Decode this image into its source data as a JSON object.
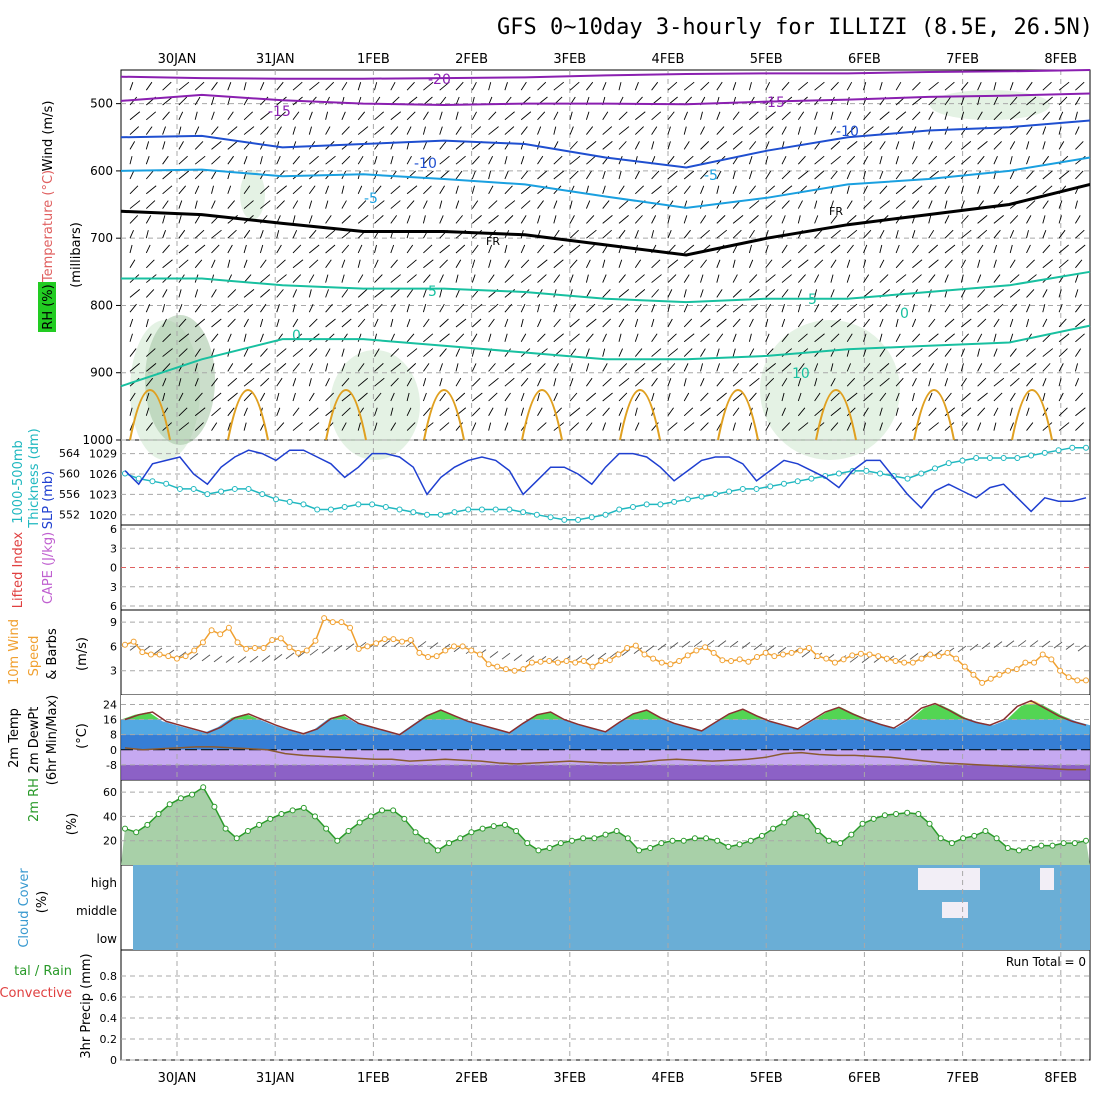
{
  "header": {
    "title": "GFS 0~10day 3-hourly for ILLIZI (8.5E, 26.5N)"
  },
  "dates": [
    "30JAN",
    "31JAN",
    "1FEB",
    "2FEB",
    "3FEB",
    "4FEB",
    "5FEB",
    "6FEB",
    "7FEB",
    "8FEB"
  ],
  "colors": {
    "temp_purple": "#8a1fb0",
    "temp_blue": "#1f4fd0",
    "temp_lightblue": "#1aa0e0",
    "temp_teal": "#18c0a0",
    "temp_orange": "#e0a020",
    "freezing": "#000000",
    "slp": "#1f3fd0",
    "thickness": "#20b8c0",
    "wind10m": "#f0a030",
    "cloud": "#6aaed6",
    "rh_green": "#2a9a2a"
  },
  "labels": {
    "upper_wind": "Wind (m/s)",
    "upper_temp": "Temperature (°C)",
    "upper_rh": "RH (%)",
    "upper_mb": "(millibars)",
    "slp": "SLP (mb)",
    "thickness_a": "1000-500mb",
    "thickness_b": "Thickness (dm)",
    "lifted": "Lifted Index",
    "cape": "CAPE (J/kg)",
    "wind10_a": "10m Wind",
    "wind10_b": "Speed",
    "wind10_c": "& Barbs",
    "wind10_unit": "(m/s)",
    "temp_a": "2m Temp",
    "temp_b": "2m DewPt",
    "temp_c": "(6hr Min/Max)",
    "temp_unit": "(°C)",
    "rh_a": "2m RH",
    "rh_unit": "(%)",
    "cloud_a": "Cloud Cover",
    "cloud_unit": "(%)",
    "precip_a": "tal / Rain",
    "precip_b": "Convective",
    "precip_c": "3hr Precip (mm)",
    "run_total": "Run Total = 0"
  },
  "contour_labels": {
    "m20": "-20",
    "m15a": "-15",
    "m15b": "-15",
    "m10a": "-10",
    "m10b": "-10",
    "m5a": "-5",
    "m5b": "-5",
    "fr1": "FR",
    "fr2": "FR",
    "p5a": "5",
    "p5b": "5",
    "p10": "10",
    "p0a": "0",
    "p0b": "0"
  },
  "chart_data": [
    {
      "type": "line",
      "panel": "upper_air",
      "y_ticks": [
        500,
        600,
        700,
        800,
        900,
        1000
      ],
      "ylim": [
        450,
        1000
      ],
      "contours": [
        {
          "name": "-20",
          "p": [
            460,
            462,
            463,
            463,
            462,
            461,
            458,
            456,
            455,
            455,
            453,
            452,
            450
          ]
        },
        {
          "name": "-15",
          "p": [
            496,
            487,
            495,
            500,
            502,
            500,
            500,
            501,
            497,
            494,
            490,
            488,
            485
          ]
        },
        {
          "name": "-10",
          "p": [
            550,
            548,
            565,
            560,
            555,
            560,
            580,
            595,
            570,
            550,
            540,
            535,
            525
          ]
        },
        {
          "name": "-5",
          "p": [
            600,
            598,
            608,
            605,
            612,
            620,
            638,
            655,
            640,
            620,
            612,
            600,
            580
          ]
        },
        {
          "name": "FR",
          "p": [
            660,
            665,
            678,
            690,
            690,
            695,
            710,
            725,
            700,
            680,
            665,
            650,
            620
          ]
        },
        {
          "name": "5",
          "p": [
            760,
            760,
            770,
            775,
            775,
            780,
            790,
            795,
            790,
            790,
            780,
            770,
            750
          ]
        },
        {
          "name": "10",
          "p": [
            920,
            880,
            850,
            850,
            860,
            870,
            880,
            880,
            875,
            865,
            860,
            855,
            830
          ]
        }
      ]
    },
    {
      "type": "line",
      "panel": "slp_thickness",
      "y_ticks_slp": [
        1020,
        1023,
        1026,
        1029
      ],
      "y_ticks_thickness": [
        552,
        556,
        560,
        564
      ],
      "series": [
        {
          "name": "SLP (mb)",
          "values": [
            1026.5,
            1024.5,
            1027.5,
            1028,
            1028.5,
            1026,
            1024.5,
            1027,
            1028.5,
            1029.5,
            1029,
            1028,
            1029.5,
            1029.5,
            1028.5,
            1027.5,
            1025.5,
            1027,
            1029,
            1029,
            1028.5,
            1027,
            1023,
            1025.5,
            1027,
            1028,
            1028.5,
            1028,
            1026.5,
            1023,
            1025,
            1027,
            1027,
            1026,
            1024.5,
            1027,
            1029,
            1029,
            1028.5,
            1027,
            1025,
            1026.5,
            1028,
            1028.5,
            1028.5,
            1027.5,
            1025,
            1026.5,
            1028,
            1027.5,
            1026.5,
            1025.5,
            1024,
            1026.5,
            1028,
            1028,
            1025.5,
            1023,
            1021,
            1023.5,
            1024.5,
            1023.5,
            1022.5,
            1024,
            1024.5,
            1022.5,
            1020.5,
            1022.5,
            1022,
            1022,
            1022.5
          ]
        },
        {
          "name": "Thickness (dm)",
          "values": [
            560,
            559,
            558.5,
            558,
            557,
            557,
            556,
            556.5,
            557,
            557,
            556,
            555,
            554.5,
            554,
            553,
            553,
            553.5,
            554,
            554,
            553.5,
            553,
            552.5,
            552,
            552,
            552.5,
            553,
            553,
            553,
            553,
            552.5,
            552,
            551.5,
            551,
            551,
            551.5,
            552,
            553,
            553.5,
            554,
            554,
            554.5,
            555,
            555.5,
            556,
            556.5,
            557,
            557,
            557.5,
            558,
            558.5,
            559,
            559.5,
            560,
            560.5,
            560.5,
            560,
            559.5,
            559,
            560,
            561,
            562,
            562.5,
            563,
            563,
            563,
            563,
            563.5,
            564,
            564.5,
            565,
            565
          ]
        }
      ]
    },
    {
      "type": "line",
      "panel": "lifted_index_cape",
      "y_ticks": [
        6,
        3,
        0,
        3,
        6
      ],
      "series": []
    },
    {
      "type": "line",
      "panel": "wind10m",
      "y_ticks": [
        3,
        6,
        9
      ],
      "series": [
        {
          "name": "10m Wind Speed",
          "values": [
            6.2,
            6.6,
            5.3,
            5.0,
            5.0,
            4.8,
            4.5,
            4.8,
            5.5,
            6.5,
            8.0,
            7.5,
            8.3,
            6.5,
            5.7,
            5.8,
            5.8,
            6.8,
            7.0,
            5.9,
            5.2,
            5.5,
            6.7,
            9.5,
            9.0,
            9.0,
            8.3,
            5.7,
            6.0,
            6.4,
            6.9,
            6.9,
            6.6,
            6.8,
            5.2,
            4.7,
            4.8,
            5.5,
            6.0,
            6.0,
            5.5,
            5.0,
            3.8,
            3.5,
            3.2,
            3.0,
            3.2,
            4.0,
            4.1,
            4.2,
            4.0,
            4.2,
            4.0,
            4.2,
            3.5,
            4.2,
            4.3,
            5.0,
            5.8,
            6.1,
            5.0,
            4.5,
            4.0,
            3.8,
            4.2,
            4.9,
            5.5,
            5.9,
            5.2,
            4.3,
            4.2,
            4.4,
            4.1,
            4.7,
            5.2,
            4.8,
            5.0,
            5.2,
            5.5,
            5.8,
            4.8,
            4.5,
            4.0,
            4.4,
            4.9,
            5.1,
            5.0,
            4.8,
            4.5,
            4.2,
            4.0,
            4.0,
            4.5,
            5.0,
            4.8,
            5.2,
            4.5,
            3.5,
            2.5,
            1.5,
            2.0,
            2.5,
            3.0,
            3.2,
            4.0,
            4.0,
            5.0,
            4.4,
            3.0,
            2.2,
            1.8,
            1.8
          ]
        }
      ]
    },
    {
      "type": "area",
      "panel": "temp_dewpoint",
      "y_ticks": [
        24,
        16,
        8,
        0,
        -8
      ],
      "series": [
        {
          "name": "2m Temp",
          "values": [
            16,
            18.5,
            20,
            15,
            13,
            11,
            9,
            12,
            17,
            19,
            16,
            13,
            10.5,
            8.5,
            11,
            16.5,
            18.5,
            14,
            12,
            10,
            8,
            13,
            18,
            21,
            18,
            15,
            13,
            11,
            9,
            14,
            18.5,
            20,
            16,
            13.5,
            11.5,
            9.5,
            14.5,
            19,
            21,
            17,
            14,
            12,
            10,
            14.5,
            19,
            21.5,
            18,
            15,
            13,
            11,
            15.5,
            20,
            22.5,
            19,
            16,
            13.5,
            11.5,
            16,
            22,
            24.5,
            21,
            17,
            14.5,
            13,
            16,
            23,
            26,
            22,
            18,
            15,
            13
          ]
        },
        {
          "name": "2m DewPt",
          "values": [
            1,
            0,
            0.5,
            1,
            1.5,
            1.5,
            1,
            0.5,
            0,
            -2,
            -3,
            -3.5,
            -4,
            -4.5,
            -5,
            -5,
            -6,
            -5.5,
            -5,
            -5.5,
            -6,
            -7,
            -7.5,
            -7,
            -6.5,
            -6,
            -6.5,
            -7,
            -7,
            -6.5,
            -5.5,
            -5,
            -5.5,
            -6,
            -5.5,
            -5,
            -4,
            -2,
            -1.5,
            -2.5,
            -3,
            -3,
            -3.5,
            -4,
            -5,
            -6,
            -7,
            -7.5,
            -8,
            -8.5,
            -9,
            -9.5,
            -10,
            -10.5,
            -10.5
          ]
        }
      ]
    },
    {
      "type": "area",
      "panel": "rh2m",
      "y_ticks": [
        20,
        40,
        60
      ],
      "series": [
        {
          "name": "2m RH",
          "values": [
            30,
            27,
            33,
            42,
            50,
            55,
            58,
            64,
            48,
            30,
            22,
            28,
            33,
            38,
            42,
            45,
            47,
            40,
            30,
            20,
            28,
            35,
            40,
            45,
            45,
            38,
            27,
            20,
            12,
            18,
            22,
            27,
            30,
            32,
            33,
            28,
            18,
            12,
            14,
            18,
            20,
            22,
            22,
            25,
            28,
            22,
            12,
            14,
            18,
            20,
            20,
            22,
            22,
            20,
            15,
            17,
            20,
            24,
            30,
            35,
            42,
            40,
            28,
            20,
            18,
            25,
            34,
            38,
            41,
            42,
            43,
            42,
            34,
            22,
            18,
            22,
            24,
            28,
            22,
            14,
            12,
            14,
            16,
            16,
            18,
            18,
            20
          ]
        }
      ]
    },
    {
      "type": "table",
      "panel": "cloud_cover",
      "rows": [
        "high",
        "middle",
        "low"
      ]
    },
    {
      "type": "bar",
      "panel": "precip3hr",
      "y_ticks": [
        0,
        0.2,
        0.4,
        0.6,
        0.8
      ],
      "ylim": [
        0,
        1
      ],
      "values": []
    }
  ]
}
